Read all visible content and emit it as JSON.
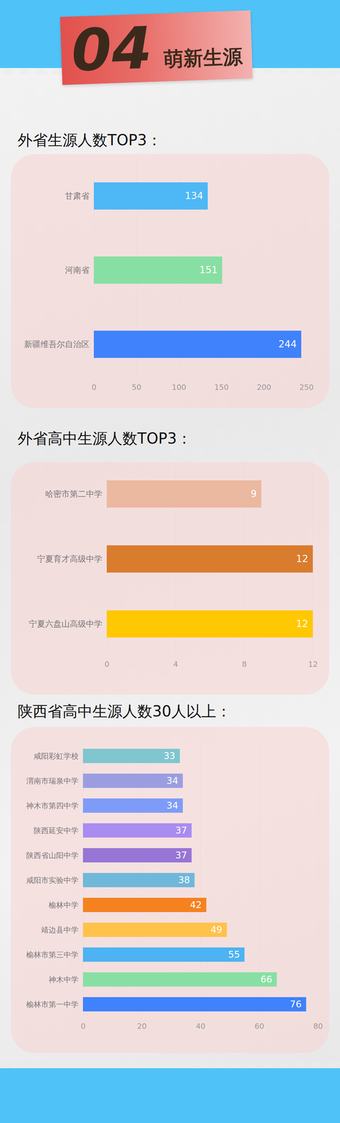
{
  "header": {
    "number": "04",
    "title": "萌新生源"
  },
  "chart_data": [
    {
      "type": "bar",
      "title": "外省生源人数TOP3：",
      "orientation": "horizontal",
      "categories": [
        "甘肃省",
        "河南省",
        "新疆维吾尔自治区"
      ],
      "values": [
        134,
        151,
        244
      ],
      "colors": [
        "#4db8f5",
        "#88dfa3",
        "#3f82fb"
      ],
      "xlim": [
        0,
        250
      ],
      "xticks": [
        0,
        50,
        100,
        150,
        200,
        250
      ],
      "grid": true,
      "data_labels": true
    },
    {
      "type": "bar",
      "title": "外省高中生源人数TOP3：",
      "orientation": "horizontal",
      "categories": [
        "哈密市第二中学",
        "宁夏育才高级中学",
        "宁夏六盘山高级中学"
      ],
      "values": [
        9,
        12,
        12
      ],
      "colors": [
        "#ebb8a0",
        "#d97c2e",
        "#ffc800"
      ],
      "xlim": [
        0,
        12
      ],
      "xticks": [
        0,
        4,
        8,
        12
      ],
      "grid": true,
      "data_labels": true
    },
    {
      "type": "bar",
      "title": "陕西省高中生源人数30人以上：",
      "orientation": "horizontal",
      "categories": [
        "咸阳彩虹学校",
        "渭南市瑞泉中学",
        "神木市第四中学",
        "陕西延安中学",
        "陕西省山阳中学",
        "咸阳市实验中学",
        "榆林中学",
        "靖边县中学",
        "榆林市第三中学",
        "神木中学",
        "榆林市第一中学"
      ],
      "values": [
        33,
        34,
        34,
        37,
        37,
        38,
        42,
        49,
        55,
        66,
        76
      ],
      "colors": [
        "#7fc6cf",
        "#9a9ee0",
        "#7e9cf7",
        "#a98cf0",
        "#9775d6",
        "#6fb8d9",
        "#f5821f",
        "#ffc24a",
        "#4db3f2",
        "#88dfa3",
        "#3f82fb"
      ],
      "xlim": [
        0,
        80
      ],
      "xticks": [
        0,
        20,
        40,
        60,
        80
      ],
      "grid": true,
      "data_labels": true
    }
  ]
}
